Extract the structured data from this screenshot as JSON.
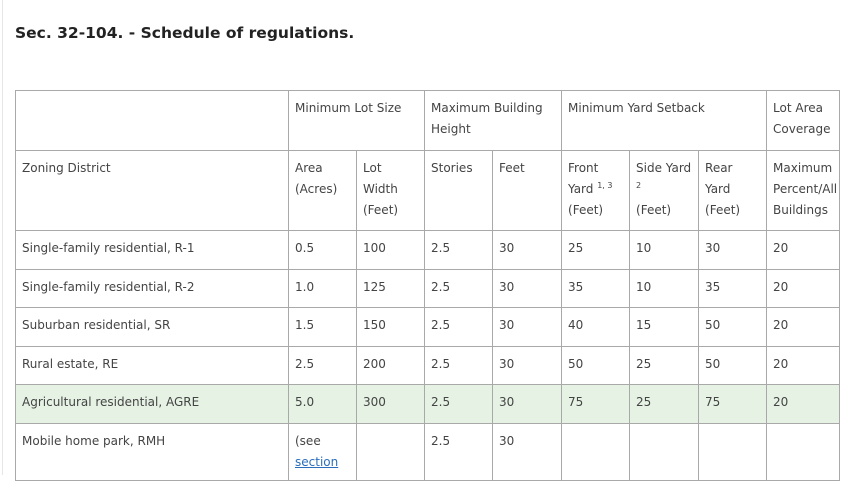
{
  "title": "Sec. 32-104. - Schedule of regulations.",
  "header_groups": {
    "min_lot_size": "Minimum Lot Size",
    "max_building_height": "Maximum Building Height",
    "min_yard_setback": "Minimum Yard Setback",
    "lot_area_coverage": "Lot Area Coverage"
  },
  "columns": {
    "zoning": "Zoning District",
    "area": "Area (Acres)",
    "lot_width": "Lot Width (Feet)",
    "stories": "Stories",
    "feet": "Feet",
    "front_yard": "Front Yard",
    "front_yard_note": "1, 3",
    "front_yard_unit": "(Feet)",
    "side_yard": "Side Yard",
    "side_yard_note": "2",
    "side_yard_unit": "(Feet)",
    "rear_yard": "Rear Yard (Feet)",
    "coverage": "Maximum Percent/All Buildings"
  },
  "rows": [
    [
      "Single-family residential, R-1",
      "0.5",
      "100",
      "2.5",
      "30",
      "25",
      "10",
      "30",
      "20"
    ],
    [
      "Single-family residential, R-2",
      "1.0",
      "125",
      "2.5",
      "30",
      "35",
      "10",
      "35",
      "20"
    ],
    [
      "Suburban residential, SR",
      "1.5",
      "150",
      "2.5",
      "30",
      "40",
      "15",
      "50",
      "20"
    ],
    [
      "Rural estate, RE",
      "2.5",
      "200",
      "2.5",
      "30",
      "50",
      "25",
      "50",
      "20"
    ],
    [
      "Agricultural residential, AGRE",
      "5.0",
      "300",
      "2.5",
      "30",
      "75",
      "25",
      "75",
      "20"
    ],
    [
      "Mobile home park, RMH",
      "(see",
      "",
      "2.5",
      "30",
      "",
      "",
      "",
      ""
    ]
  ],
  "rmh_link": "section",
  "highlight_color": "#e6f3e4",
  "link_color": "#2a6ebb"
}
